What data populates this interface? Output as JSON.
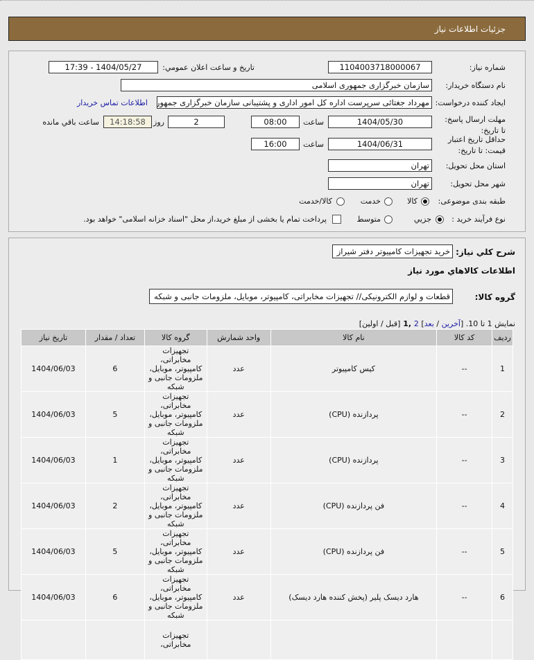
{
  "header": {
    "title": "جزئیات اطلاعات نیاز"
  },
  "form": {
    "need_number_label": "شماره نياز:",
    "need_number": "1104003718000067",
    "announce_label": "تاريخ و ساعت اعلان عمومي:",
    "announce_value": "1404/05/27 - 17:39",
    "buyer_label": "نام دستگاه خريدار:",
    "buyer": "سازمان خبرگزاری جمهوری اسلامی",
    "creator_label": "ايجاد کننده درخواست:",
    "creator": "مهرداد جغتائی سرپرست اداره کل امور اداری و پشتیبانی سازمان خبرگزاری جمهوری",
    "contact_link": "اطلاعات تماس خريدار",
    "deadline_label": "مهلت ارسال پاسخ: تا تاريخ:",
    "deadline_date": "1404/05/30",
    "time_label": "ساعت",
    "deadline_time": "08:00",
    "days": "2",
    "days_label": "روز و",
    "remaining": "14:18:58",
    "remaining_label": "ساعت باقي مانده",
    "validity_label": "حداقل تاريخ اعتبار قيمت: تا تاريخ:",
    "validity_date": "1404/06/31",
    "validity_time": "16:00",
    "province_label": "استان محل تحويل:",
    "province": "تهران",
    "city_label": "شهر محل تحويل:",
    "city": "تهران",
    "category_label": "طبقه بندی موضوعی:",
    "category_options": [
      "کالا",
      "خدمت",
      "کالا/خدمت"
    ],
    "category_selected": "کالا",
    "process_label": "نوع فرآيند خريد :",
    "process_options": [
      "جزيي",
      "متوسط"
    ],
    "process_selected": "جزيي",
    "payment_note": "پرداخت تمام يا بخشی از مبلغ خريد،از محل \"اسناد خزانه اسلامی\" خواهد بود."
  },
  "details": {
    "summary_label": "شرح کلي نياز:",
    "summary": "خريد تجهيزات کامپيوتر دفتر شيراز",
    "goods_title": "اطلاعات کالاهاي مورد نياز",
    "group_label": "گروه کالا:",
    "group": "قطعات و لوازم الکترونیکی// تجهیزات مخابراتی، کامپیوتر، موبایل، ملزومات جانبی و شبکه",
    "paging": {
      "prefix": "نمایش 1 تا 10. [",
      "last": "آخرین",
      "sep": " / ",
      "next": "بعد",
      "close": "] ",
      "page2": "2",
      "cur": " ,1 ",
      "tail": "[قبل / اولین]"
    }
  },
  "table": {
    "headers": [
      "رديف",
      "کد کالا",
      "نام کالا",
      "واحد شمارش",
      "گروه کالا",
      "تعداد / مقدار",
      "تاريخ نياز"
    ],
    "rows": [
      [
        "1",
        "--",
        "کيس کامپيوتر",
        "عدد",
        "تجهيزات مخابراتی، کامپيوتر، موبايل، ملزومات جانبی و شبکه",
        "6",
        "1404/06/03"
      ],
      [
        "2",
        "--",
        "پردازنده (CPU)",
        "عدد",
        "تجهيزات مخابراتی، کامپيوتر، موبايل، ملزومات جانبی و شبکه",
        "5",
        "1404/06/03"
      ],
      [
        "3",
        "--",
        "پردازنده (CPU)",
        "عدد",
        "تجهيزات مخابراتی، کامپيوتر، موبايل، ملزومات جانبی و شبکه",
        "1",
        "1404/06/03"
      ],
      [
        "4",
        "--",
        "فن پردازنده (CPU)",
        "عدد",
        "تجهيزات مخابراتی، کامپيوتر، موبايل، ملزومات جانبی و شبکه",
        "2",
        "1404/06/03"
      ],
      [
        "5",
        "--",
        "فن پردازنده (CPU)",
        "عدد",
        "تجهيزات مخابراتی، کامپيوتر، موبايل، ملزومات جانبی و شبکه",
        "5",
        "1404/06/03"
      ],
      [
        "6",
        "--",
        "هارد ديسک پلير (پخش کننده هارد ديسک)",
        "عدد",
        "تجهيزات مخابراتی، کامپيوتر، موبايل، ملزومات جانبی و شبکه",
        "6",
        "1404/06/03"
      ],
      [
        "",
        "",
        "",
        "",
        "تجهيزات مخابراتی،",
        "",
        ""
      ]
    ]
  }
}
